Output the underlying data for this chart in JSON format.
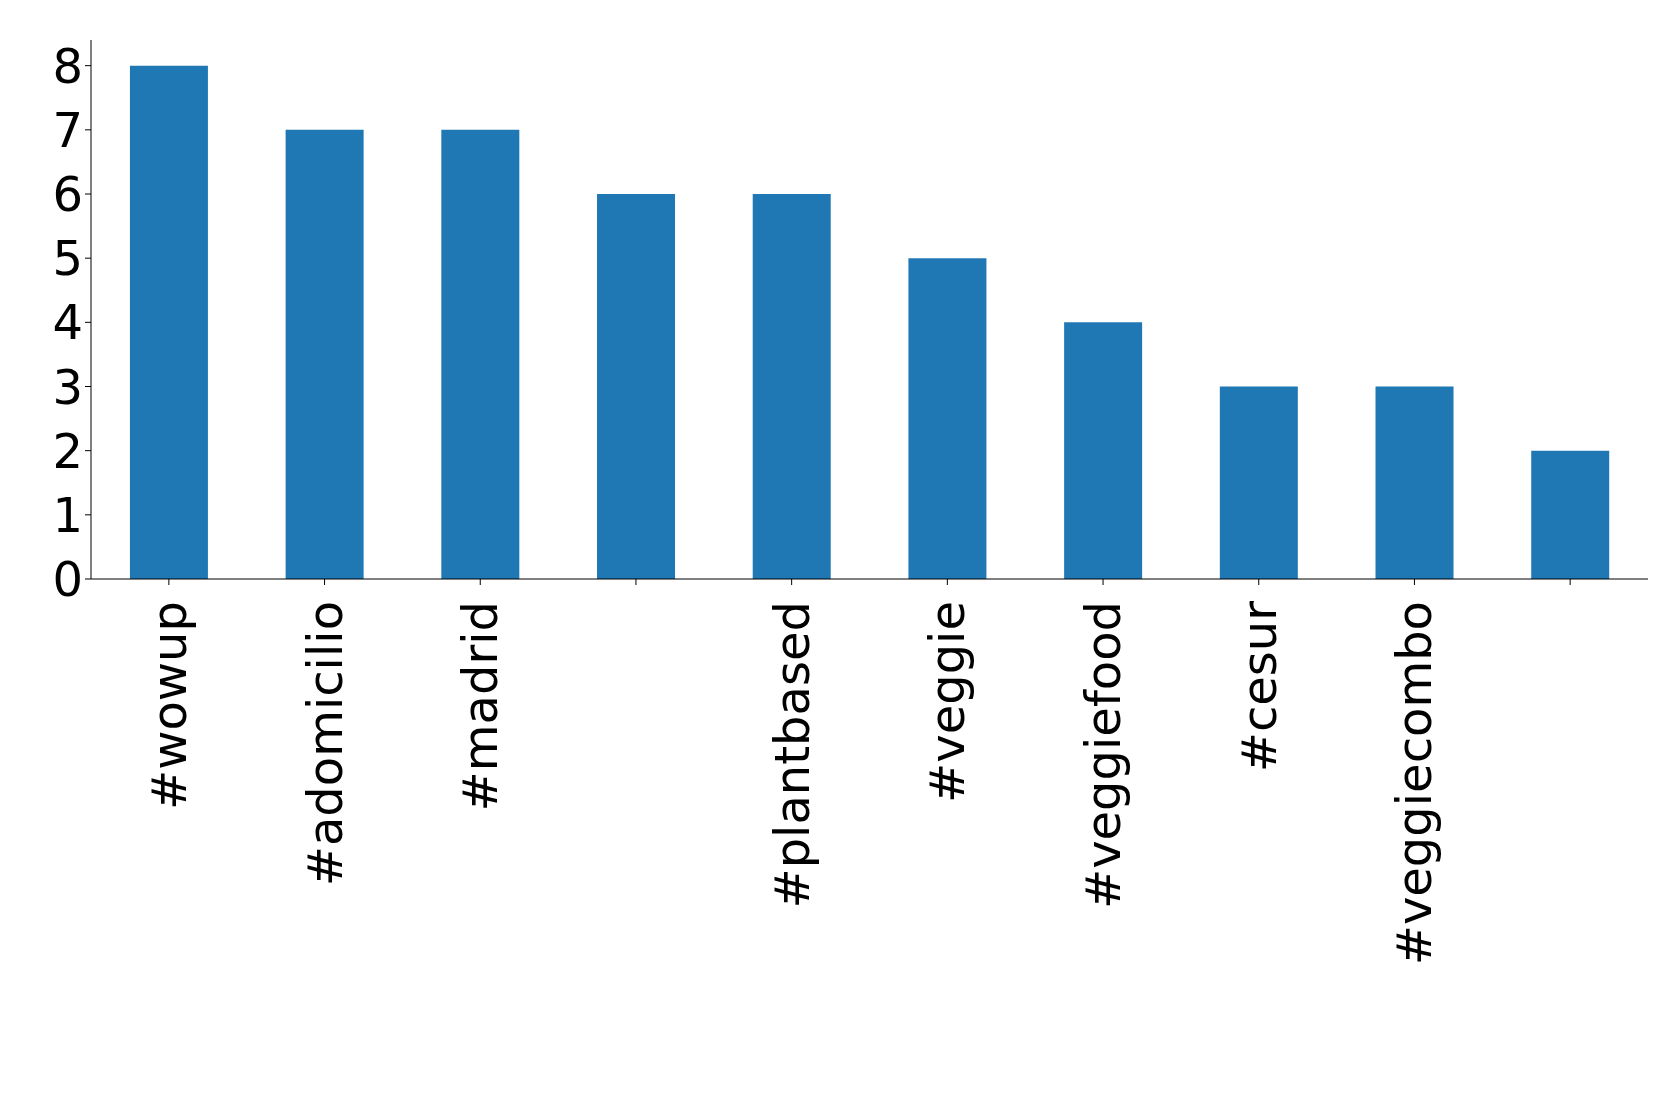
{
  "chart_data": {
    "type": "bar",
    "categories": [
      "#wowup",
      "#adomicilio",
      "#madrid",
      null,
      "#plantbased",
      "#veggie",
      "#veggiefood",
      "#cesur",
      "#veggiecombo",
      null
    ],
    "values": [
      8,
      7,
      7,
      6,
      6,
      5,
      4,
      3,
      3,
      2
    ],
    "color": "#1f77b4",
    "ylim": [
      0,
      8.4
    ],
    "yticks": [
      0,
      1,
      2,
      3,
      4,
      5,
      6,
      7,
      8
    ],
    "grid": false
  }
}
